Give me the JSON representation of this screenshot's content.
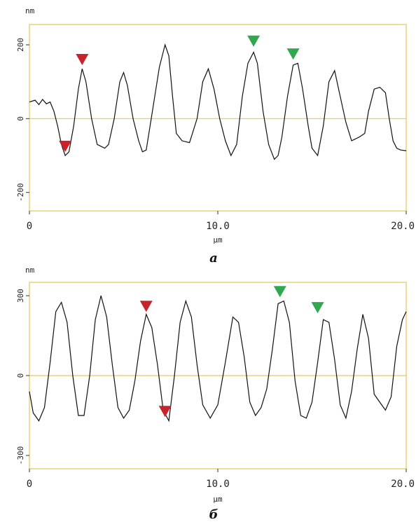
{
  "chart_data": [
    {
      "type": "line",
      "panel_label": "а",
      "ylabel": "nm",
      "xlabel": "µm",
      "xlim": [
        0,
        20
      ],
      "ylim": [
        -250,
        255
      ],
      "yticks": [
        200,
        0,
        -200
      ],
      "ytick_labels": [
        "200",
        "0",
        "-200"
      ],
      "xticks": [
        0,
        10,
        20
      ],
      "xtick_labels": [
        "0",
        "10.0",
        "20.0"
      ],
      "colors": {
        "frame": "#e8d27a",
        "zero_line": "#e8c760",
        "trace": "#111111",
        "marker_red": "#c8232a",
        "marker_green": "#2fa84f"
      },
      "series": [
        {
          "x": [
            0,
            0.3,
            0.5,
            0.7,
            0.9,
            1.1,
            1.3,
            1.5,
            1.7,
            1.9,
            2.1,
            2.35,
            2.6,
            2.8,
            3.0,
            3.3,
            3.6,
            3.8,
            4.0,
            4.2,
            4.5,
            4.8,
            5.0,
            5.2,
            5.5,
            5.8,
            6.0,
            6.2,
            6.5,
            6.9,
            7.2,
            7.4,
            7.6,
            7.8,
            8.1,
            8.5,
            8.9,
            9.2,
            9.5,
            9.8,
            10.1,
            10.4,
            10.7,
            11.0,
            11.3,
            11.6,
            11.9,
            12.1,
            12.4,
            12.7,
            13.0,
            13.2,
            13.4,
            13.7,
            14.0,
            14.25,
            14.5,
            14.8,
            15.0,
            15.3,
            15.6,
            15.9,
            16.2,
            16.5,
            16.8,
            17.1,
            17.5,
            17.8,
            18.0,
            18.3,
            18.6,
            18.9,
            19.1,
            19.3,
            19.5,
            19.7,
            20.0
          ],
          "y": [
            45,
            50,
            38,
            52,
            40,
            45,
            20,
            -20,
            -70,
            -100,
            -90,
            -20,
            80,
            135,
            100,
            0,
            -70,
            -75,
            -80,
            -70,
            0,
            100,
            125,
            90,
            0,
            -60,
            -90,
            -85,
            10,
            140,
            200,
            170,
            60,
            -40,
            -60,
            -65,
            0,
            100,
            135,
            80,
            0,
            -60,
            -100,
            -70,
            60,
            150,
            180,
            150,
            20,
            -70,
            -110,
            -100,
            -50,
            60,
            145,
            150,
            80,
            -20,
            -80,
            -100,
            -20,
            100,
            130,
            60,
            -10,
            -60,
            -50,
            -40,
            20,
            80,
            85,
            70,
            0,
            -60,
            -80,
            -85,
            -87
          ]
        }
      ],
      "markers": [
        {
          "x": 1.9,
          "y": -75,
          "color": "red"
        },
        {
          "x": 2.8,
          "y": 160,
          "color": "red"
        },
        {
          "x": 11.9,
          "y": 210,
          "color": "green"
        },
        {
          "x": 14.0,
          "y": 175,
          "color": "green"
        }
      ]
    },
    {
      "type": "line",
      "panel_label": "б",
      "ylabel": "nm",
      "xlabel": "µm",
      "xlim": [
        0,
        20
      ],
      "ylim": [
        -350,
        350
      ],
      "yticks": [
        300,
        0,
        -300
      ],
      "ytick_labels": [
        "300",
        "0",
        "-300"
      ],
      "xticks": [
        0,
        10,
        20
      ],
      "xtick_labels": [
        "0",
        "10.0",
        "20.0"
      ],
      "colors": {
        "frame": "#e8d27a",
        "zero_line": "#e8c760",
        "trace": "#111111",
        "marker_red": "#c8232a",
        "marker_green": "#2fa84f"
      },
      "series": [
        {
          "x": [
            0,
            0.2,
            0.5,
            0.8,
            1.1,
            1.4,
            1.7,
            2.0,
            2.3,
            2.6,
            2.9,
            3.2,
            3.5,
            3.8,
            4.1,
            4.4,
            4.7,
            5.0,
            5.3,
            5.6,
            5.9,
            6.2,
            6.5,
            6.8,
            7.1,
            7.4,
            7.7,
            8.0,
            8.3,
            8.6,
            8.9,
            9.2,
            9.6,
            10.0,
            10.4,
            10.8,
            11.1,
            11.4,
            11.7,
            12.0,
            12.3,
            12.6,
            12.9,
            13.2,
            13.5,
            13.8,
            14.1,
            14.4,
            14.7,
            15.0,
            15.3,
            15.6,
            15.9,
            16.2,
            16.5,
            16.8,
            17.1,
            17.4,
            17.7,
            18.0,
            18.3,
            18.6,
            18.9,
            19.2,
            19.5,
            19.8,
            20.0
          ],
          "y": [
            -60,
            -140,
            -170,
            -120,
            50,
            240,
            275,
            200,
            0,
            -150,
            -150,
            0,
            210,
            300,
            220,
            40,
            -120,
            -160,
            -130,
            -20,
            130,
            230,
            180,
            40,
            -130,
            -170,
            0,
            200,
            280,
            220,
            40,
            -110,
            -160,
            -110,
            50,
            220,
            200,
            70,
            -100,
            -150,
            -120,
            -50,
            100,
            270,
            280,
            200,
            -20,
            -150,
            -160,
            -100,
            50,
            210,
            200,
            60,
            -110,
            -160,
            -60,
            100,
            230,
            140,
            -70,
            -100,
            -130,
            -80,
            110,
            210,
            240
          ]
        }
      ],
      "markers": [
        {
          "x": 6.2,
          "y": 260,
          "color": "red"
        },
        {
          "x": 7.2,
          "y": -135,
          "color": "red"
        },
        {
          "x": 13.3,
          "y": 315,
          "color": "green"
        },
        {
          "x": 15.3,
          "y": 255,
          "color": "green"
        }
      ]
    }
  ]
}
